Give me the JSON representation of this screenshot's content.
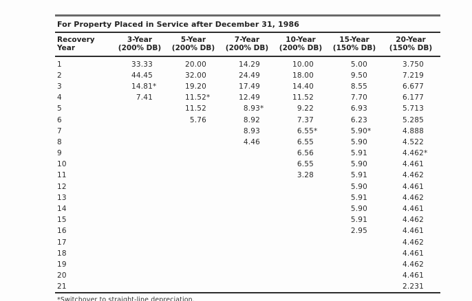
{
  "colors": {
    "rule_gray": "#6a6a6a",
    "rule_dark": "#2c2c2c",
    "text": "#2b2b2b",
    "background": "#fdfdfd"
  },
  "table": {
    "title": "For Property Placed in Service after December 31, 1986",
    "columns": [
      {
        "line1": "Recovery",
        "line2": "Year"
      },
      {
        "line1": "3-Year",
        "line2": "(200% DB)"
      },
      {
        "line1": "5-Year",
        "line2": "(200% DB)"
      },
      {
        "line1": "7-Year",
        "line2": "(200% DB)"
      },
      {
        "line1": "10-Year",
        "line2": "(200% DB)"
      },
      {
        "line1": "15-Year",
        "line2": "(150% DB)"
      },
      {
        "line1": "20-Year",
        "line2": "(150% DB)"
      }
    ],
    "rows": [
      {
        "year": "1",
        "values": [
          "33.33",
          "20.00",
          "14.29",
          "10.00",
          "5.00",
          "3.750"
        ]
      },
      {
        "year": "2",
        "values": [
          "44.45",
          "32.00",
          "24.49",
          "18.00",
          "9.50",
          "7.219"
        ]
      },
      {
        "year": "3",
        "values": [
          "14.81*",
          "19.20",
          "17.49",
          "14.40",
          "8.55",
          "6.677"
        ]
      },
      {
        "year": "4",
        "values": [
          "7.41",
          "11.52*",
          "12.49",
          "11.52",
          "7.70",
          "6.177"
        ]
      },
      {
        "year": "5",
        "values": [
          "",
          "11.52",
          "8.93*",
          "9.22",
          "6.93",
          "5.713"
        ]
      },
      {
        "year": "6",
        "values": [
          "",
          "5.76",
          "8.92",
          "7.37",
          "6.23",
          "5.285"
        ]
      },
      {
        "year": "7",
        "values": [
          "",
          "",
          "8.93",
          "6.55*",
          "5.90*",
          "4.888"
        ]
      },
      {
        "year": "8",
        "values": [
          "",
          "",
          "4.46",
          "6.55",
          "5.90",
          "4.522"
        ]
      },
      {
        "year": "9",
        "values": [
          "",
          "",
          "",
          "6.56",
          "5.91",
          "4.462*"
        ]
      },
      {
        "year": "10",
        "values": [
          "",
          "",
          "",
          "6.55",
          "5.90",
          "4.461"
        ]
      },
      {
        "year": "11",
        "values": [
          "",
          "",
          "",
          "3.28",
          "5.91",
          "4.462"
        ]
      },
      {
        "year": "12",
        "values": [
          "",
          "",
          "",
          "",
          "5.90",
          "4.461"
        ]
      },
      {
        "year": "13",
        "values": [
          "",
          "",
          "",
          "",
          "5.91",
          "4.462"
        ]
      },
      {
        "year": "14",
        "values": [
          "",
          "",
          "",
          "",
          "5.90",
          "4.461"
        ]
      },
      {
        "year": "15",
        "values": [
          "",
          "",
          "",
          "",
          "5.91",
          "4.462"
        ]
      },
      {
        "year": "16",
        "values": [
          "",
          "",
          "",
          "",
          "2.95",
          "4.461"
        ]
      },
      {
        "year": "17",
        "values": [
          "",
          "",
          "",
          "",
          "",
          "4.462"
        ]
      },
      {
        "year": "18",
        "values": [
          "",
          "",
          "",
          "",
          "",
          "4.461"
        ]
      },
      {
        "year": "19",
        "values": [
          "",
          "",
          "",
          "",
          "",
          "4.462"
        ]
      },
      {
        "year": "20",
        "values": [
          "",
          "",
          "",
          "",
          "",
          "4.461"
        ]
      },
      {
        "year": "21",
        "values": [
          "",
          "",
          "",
          "",
          "",
          "2.231"
        ]
      }
    ],
    "footnote": "*Switchover to straight-line depreciation."
  }
}
